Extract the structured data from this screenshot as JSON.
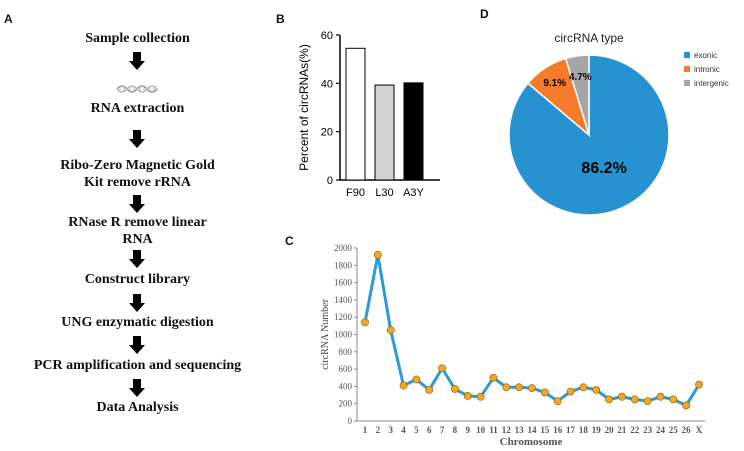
{
  "panels": {
    "a": "A",
    "b": "B",
    "c": "C",
    "d": "D"
  },
  "workflow": {
    "steps": [
      "Sample collection",
      "RNA extraction",
      "Ribo-Zero Magnetic Gold\nKit remove rRNA",
      "RNase R remove linear\nRNA",
      "Construct library",
      "UNG enzymatic digestion",
      "PCR amplification and sequencing",
      "Data Analysis"
    ]
  },
  "chart_data": [
    {
      "id": "B",
      "type": "bar",
      "categories": [
        "F90",
        "L30",
        "A3Y"
      ],
      "values": [
        54.5,
        39.3,
        40.2
      ],
      "ylabel": "Percent of circRNAs(%)",
      "ylim": [
        0,
        60
      ],
      "yticks": [
        0,
        20,
        40,
        60
      ],
      "bar_colors": [
        "#ffffff",
        "#d3d3d3",
        "#000000"
      ]
    },
    {
      "id": "D",
      "type": "pie",
      "title": "circRNA type",
      "labels": [
        "exonic",
        "intronic",
        "intergenic"
      ],
      "values": [
        86.2,
        9.1,
        4.7
      ],
      "value_labels": [
        "86.2%",
        "9.1%",
        "4.7%"
      ],
      "colors": [
        "#2693d0",
        "#f47b2a",
        "#a6a6a6"
      ],
      "legend": "right"
    },
    {
      "id": "C",
      "type": "line",
      "xlabel": "Chromosome",
      "ylabel": "circRNA Number",
      "categories": [
        "1",
        "2",
        "3",
        "4",
        "5",
        "6",
        "7",
        "8",
        "9",
        "10",
        "11",
        "12",
        "13",
        "14",
        "15",
        "16",
        "17",
        "18",
        "19",
        "20",
        "21",
        "22",
        "23",
        "24",
        "25",
        "26",
        "X"
      ],
      "values": [
        1140,
        1920,
        1050,
        410,
        480,
        360,
        610,
        370,
        290,
        280,
        500,
        390,
        390,
        380,
        330,
        230,
        340,
        390,
        360,
        250,
        280,
        250,
        230,
        280,
        250,
        180,
        420
      ],
      "ylim": [
        0,
        2000
      ],
      "yticks": [
        0,
        200,
        400,
        600,
        800,
        1000,
        1200,
        1400,
        1600,
        1800,
        2000
      ],
      "line_color": "#2c9ad3",
      "marker_color": "#f5a623"
    }
  ]
}
